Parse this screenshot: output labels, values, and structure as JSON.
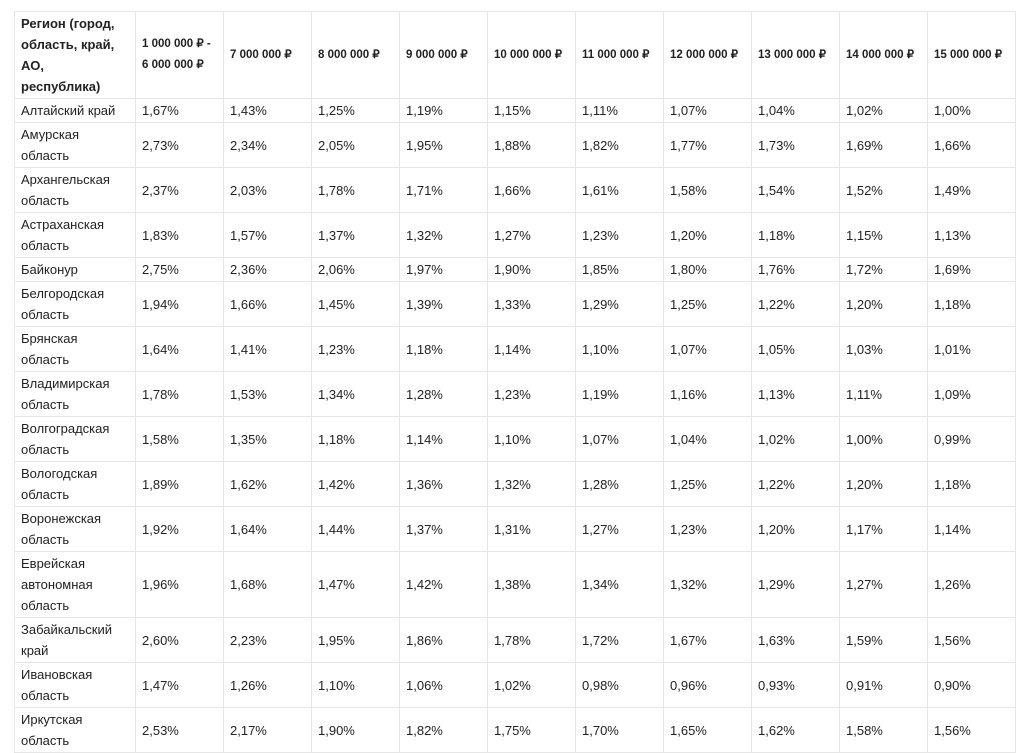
{
  "table": {
    "header": [
      "Регион (город, область, край, АО, республика)",
      "1 000 000 ₽ - 6 000 000 ₽",
      "7 000 000 ₽",
      "8 000 000 ₽",
      "9 000 000 ₽",
      "10 000 000 ₽",
      "11 000 000 ₽",
      "12 000 000 ₽",
      "13 000 000 ₽",
      "14 000 000 ₽",
      "15 000 000 ₽"
    ],
    "rows": [
      [
        "Алтайский край",
        "1,67%",
        "1,43%",
        "1,25%",
        "1,19%",
        "1,15%",
        "1,11%",
        "1,07%",
        "1,04%",
        "1,02%",
        "1,00%"
      ],
      [
        "Амурская область",
        "2,73%",
        "2,34%",
        "2,05%",
        "1,95%",
        "1,88%",
        "1,82%",
        "1,77%",
        "1,73%",
        "1,69%",
        "1,66%"
      ],
      [
        "Архангельская область",
        "2,37%",
        "2,03%",
        "1,78%",
        "1,71%",
        "1,66%",
        "1,61%",
        "1,58%",
        "1,54%",
        "1,52%",
        "1,49%"
      ],
      [
        "Астраханская область",
        "1,83%",
        "1,57%",
        "1,37%",
        "1,32%",
        "1,27%",
        "1,23%",
        "1,20%",
        "1,18%",
        "1,15%",
        "1,13%"
      ],
      [
        "Байконур",
        "2,75%",
        "2,36%",
        "2,06%",
        "1,97%",
        "1,90%",
        "1,85%",
        "1,80%",
        "1,76%",
        "1,72%",
        "1,69%"
      ],
      [
        "Белгородская область",
        "1,94%",
        "1,66%",
        "1,45%",
        "1,39%",
        "1,33%",
        "1,29%",
        "1,25%",
        "1,22%",
        "1,20%",
        "1,18%"
      ],
      [
        "Брянская область",
        "1,64%",
        "1,41%",
        "1,23%",
        "1,18%",
        "1,14%",
        "1,10%",
        "1,07%",
        "1,05%",
        "1,03%",
        "1,01%"
      ],
      [
        "Владимирская область",
        "1,78%",
        "1,53%",
        "1,34%",
        "1,28%",
        "1,23%",
        "1,19%",
        "1,16%",
        "1,13%",
        "1,11%",
        "1,09%"
      ],
      [
        "Волгоградская область",
        "1,58%",
        "1,35%",
        "1,18%",
        "1,14%",
        "1,10%",
        "1,07%",
        "1,04%",
        "1,02%",
        "1,00%",
        "0,99%"
      ],
      [
        "Вологодская область",
        "1,89%",
        "1,62%",
        "1,42%",
        "1,36%",
        "1,32%",
        "1,28%",
        "1,25%",
        "1,22%",
        "1,20%",
        "1,18%"
      ],
      [
        "Воронежская область",
        "1,92%",
        "1,64%",
        "1,44%",
        "1,37%",
        "1,31%",
        "1,27%",
        "1,23%",
        "1,20%",
        "1,17%",
        "1,14%"
      ],
      [
        "Еврейская автономная область",
        "1,96%",
        "1,68%",
        "1,47%",
        "1,42%",
        "1,38%",
        "1,34%",
        "1,32%",
        "1,29%",
        "1,27%",
        "1,26%"
      ],
      [
        "Забайкальский край",
        "2,60%",
        "2,23%",
        "1,95%",
        "1,86%",
        "1,78%",
        "1,72%",
        "1,67%",
        "1,63%",
        "1,59%",
        "1,56%"
      ],
      [
        "Ивановская область",
        "1,47%",
        "1,26%",
        "1,10%",
        "1,06%",
        "1,02%",
        "0,98%",
        "0,96%",
        "0,93%",
        "0,91%",
        "0,90%"
      ],
      [
        "Иркутская область",
        "2,53%",
        "2,17%",
        "1,90%",
        "1,82%",
        "1,75%",
        "1,70%",
        "1,65%",
        "1,62%",
        "1,58%",
        "1,56%"
      ]
    ]
  }
}
